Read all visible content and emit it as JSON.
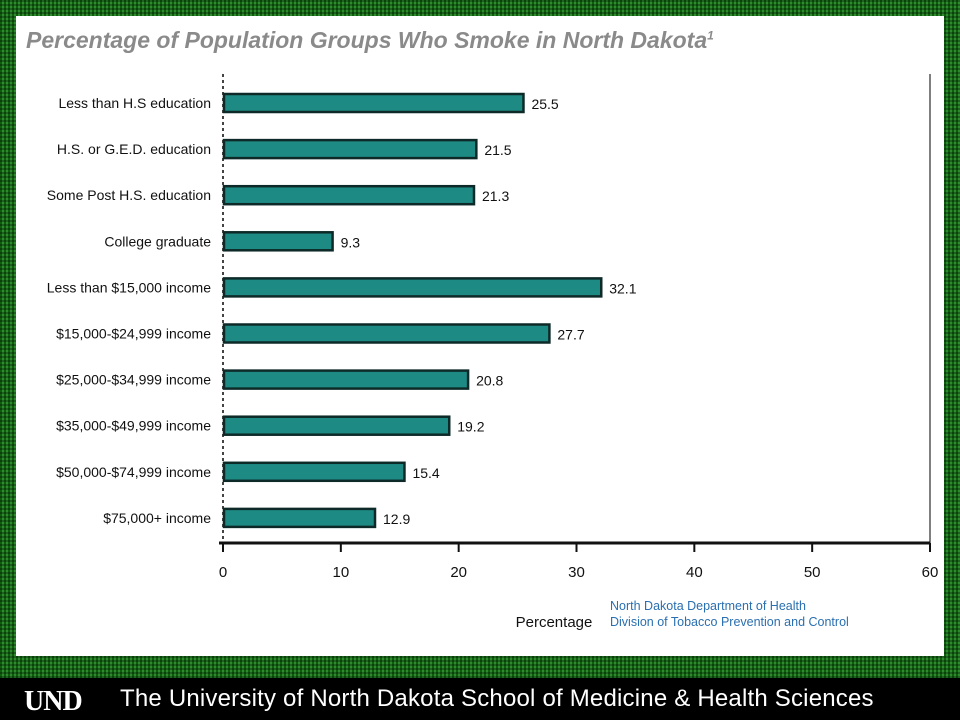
{
  "title": "Percentage of Population Groups Who Smoke in North Dakota",
  "title_superscript": "1",
  "source": {
    "line1": "North Dakota Department of Health",
    "line2": "Division of Tobacco Prevention and Control"
  },
  "footer": {
    "logo_text": "UND",
    "text": "The University of North Dakota School of Medicine & Health Sciences"
  },
  "colors": {
    "bar_fill": "#1e8a84",
    "bar_stroke": "#0d2a28",
    "frame_green": "#1f7a1f",
    "title_gray": "#8a8a8a",
    "source_blue": "#2a6fb0"
  },
  "chart_data": {
    "type": "bar",
    "orientation": "horizontal",
    "categories": [
      "Less than H.S education",
      "H.S. or G.E.D. education",
      "Some Post H.S. education",
      "College graduate",
      "Less than $15,000 income",
      "$15,000-$24,999  income",
      "$25,000-$34,999  income",
      "$35,000-$49,999  income",
      "$50,000-$74,999  income",
      "$75,000+ income"
    ],
    "values": [
      25.5,
      21.5,
      21.3,
      9.3,
      32.1,
      27.7,
      20.8,
      19.2,
      15.4,
      12.9
    ],
    "data_labels": [
      "25.5",
      "21.5",
      "21.3",
      "9.3",
      "32.1",
      "27.7",
      "20.8",
      "19.2",
      "15.4",
      "12.9"
    ],
    "xlabel": "Percentage",
    "ylabel": "",
    "xlim": [
      0,
      60
    ],
    "xticks": [
      0,
      10,
      20,
      30,
      40,
      50,
      60
    ],
    "grid": false
  }
}
